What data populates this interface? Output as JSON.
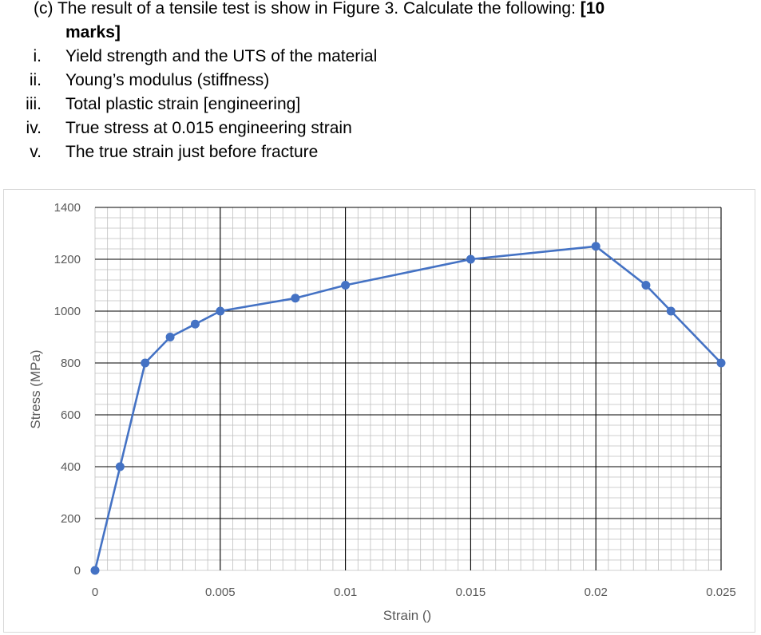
{
  "question": {
    "header_prefix": "(c)  The result of a tensile test is show in Figure 3. Calculate the following:",
    "marks_part1": "[10",
    "marks_part2": "marks]",
    "items": [
      {
        "num": "i.",
        "text": "Yield strength and the UTS of the material"
      },
      {
        "num": "ii.",
        "text": "Young’s modulus (stiffness)"
      },
      {
        "num": "iii.",
        "text": "Total plastic strain [engineering]"
      },
      {
        "num": "iv.",
        "text": "True stress at 0.015 engineering strain"
      },
      {
        "num": "v.",
        "text": "The true strain just before fracture"
      }
    ]
  },
  "colors": {
    "series": "#4472c4",
    "major_grid": "#000000",
    "minor_grid": "#bfbfbf",
    "tick_label": "#595959"
  },
  "chart_data": {
    "type": "line",
    "title": "",
    "xlabel": "Strain ()",
    "ylabel": "Stress (MPa)",
    "xlim": [
      0,
      0.025
    ],
    "ylim": [
      0,
      1400
    ],
    "x_ticks": [
      0,
      0.005,
      0.01,
      0.015,
      0.02,
      0.025
    ],
    "x_tick_labels": [
      "0",
      "0.005",
      "0.01",
      "0.015",
      "0.02",
      "0.025"
    ],
    "y_ticks": [
      0,
      200,
      400,
      600,
      800,
      1000,
      1200,
      1400
    ],
    "y_tick_labels": [
      "0",
      "200",
      "400",
      "600",
      "800",
      "1000",
      "1200",
      "1400"
    ],
    "grid": true,
    "legend": false,
    "series": [
      {
        "x": [
          0,
          0.001,
          0.002,
          0.003,
          0.004,
          0.005,
          0.008,
          0.01,
          0.015,
          0.02,
          0.022,
          0.023,
          0.025
        ],
        "y": [
          0,
          400,
          800,
          900,
          950,
          1000,
          1050,
          1100,
          1200,
          1250,
          1100,
          1000,
          800
        ]
      }
    ]
  }
}
